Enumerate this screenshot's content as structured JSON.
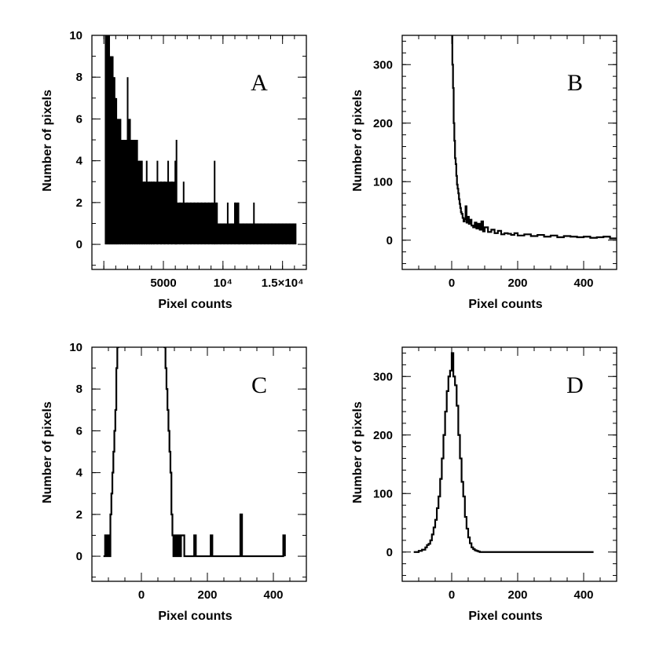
{
  "figure": {
    "description_free": true
  },
  "chart_data": [
    {
      "type": "line",
      "panel": "A",
      "title": "A",
      "xlabel": "Pixel counts",
      "ylabel": "Number of pixels",
      "xlim": [
        -1000,
        17000
      ],
      "ylim": [
        -1.2,
        10
      ],
      "xticks": [
        {
          "value": 0,
          "label": ""
        },
        {
          "value": 5000,
          "label": "5000"
        },
        {
          "value": 10000,
          "label": "10⁴"
        },
        {
          "value": 15000,
          "label": "1.5×10⁴"
        }
      ],
      "yticks": [
        0,
        2,
        4,
        6,
        8,
        10
      ],
      "xminor": 1000,
      "yminor": 1,
      "style": "spikes",
      "series": [
        {
          "name": "histogram",
          "x": [
            150,
            300,
            450,
            600,
            750,
            900,
            1050,
            1200,
            1400,
            1600,
            1800,
            2000,
            2200,
            2400,
            2600,
            2800,
            3000,
            3200,
            3400,
            3600,
            3800,
            4000,
            4200,
            4500,
            4800,
            5100,
            5400,
            5700,
            6000,
            6100,
            6400,
            6700,
            7000,
            7300,
            7600,
            7900,
            8200,
            8500,
            8800,
            9100,
            9300,
            9500,
            9800,
            10100,
            10400,
            10700,
            11000,
            11300,
            11400,
            11700,
            12000,
            12300,
            12600,
            12900,
            13200,
            13500,
            13800,
            14100,
            14400,
            14700,
            15000,
            15300,
            15600,
            15900,
            16100
          ],
          "values": [
            10,
            10,
            10,
            9,
            9,
            8,
            7,
            6,
            6,
            5,
            5,
            8,
            6,
            5,
            5,
            5,
            4,
            4,
            3,
            4,
            3,
            3,
            3,
            4,
            3,
            3,
            4,
            3,
            4,
            5,
            2,
            3,
            2,
            2,
            2,
            2,
            2,
            2,
            2,
            2,
            4,
            2,
            1,
            1,
            2,
            1,
            2,
            2,
            1,
            1,
            1,
            1,
            2,
            1,
            1,
            1,
            1,
            1,
            1,
            1,
            1,
            1,
            1,
            1,
            1
          ]
        }
      ]
    },
    {
      "type": "line",
      "panel": "B",
      "title": "B",
      "xlabel": "Pixel counts",
      "ylabel": "Number of pixels",
      "xlim": [
        -150,
        500
      ],
      "ylim": [
        -50,
        350
      ],
      "xticks": [
        {
          "value": 0,
          "label": "0"
        },
        {
          "value": 200,
          "label": "200"
        },
        {
          "value": 400,
          "label": "400"
        }
      ],
      "yticks": [
        0,
        100,
        200,
        300
      ],
      "xminor": 50,
      "yminor": 20,
      "style": "step",
      "series": [
        {
          "name": "histogram",
          "x": [
            0,
            2,
            4,
            6,
            8,
            10,
            12,
            14,
            16,
            18,
            20,
            22,
            24,
            26,
            28,
            30,
            33,
            36,
            39,
            42,
            45,
            48,
            52,
            56,
            60,
            65,
            70,
            75,
            80,
            85,
            90,
            95,
            100,
            110,
            120,
            130,
            140,
            150,
            160,
            170,
            180,
            190,
            200,
            220,
            240,
            260,
            280,
            300,
            320,
            340,
            360,
            380,
            400,
            420,
            440,
            460,
            480,
            500
          ],
          "values": [
            350,
            300,
            260,
            200,
            170,
            140,
            130,
            110,
            95,
            88,
            80,
            70,
            62,
            55,
            48,
            45,
            38,
            32,
            36,
            58,
            30,
            40,
            28,
            35,
            25,
            22,
            30,
            20,
            28,
            18,
            32,
            15,
            22,
            14,
            18,
            12,
            16,
            10,
            12,
            11,
            9,
            12,
            8,
            10,
            7,
            9,
            6,
            8,
            5,
            7,
            6,
            5,
            6,
            4,
            5,
            6,
            3,
            4
          ]
        }
      ]
    },
    {
      "type": "line",
      "panel": "C",
      "title": "C",
      "xlabel": "Pixel counts",
      "ylabel": "Number of pixels",
      "xlim": [
        -150,
        500
      ],
      "ylim": [
        -1.2,
        10
      ],
      "xticks": [
        {
          "value": 0,
          "label": "0"
        },
        {
          "value": 200,
          "label": "200"
        },
        {
          "value": 400,
          "label": "400"
        }
      ],
      "yticks": [
        0,
        2,
        4,
        6,
        8,
        10
      ],
      "xminor": 50,
      "yminor": 1,
      "style": "step",
      "series": [
        {
          "name": "histogram",
          "x": [
            -115,
            -110,
            -105,
            -100,
            -97,
            -94,
            -91,
            -88,
            -85,
            -82,
            -79,
            -76,
            -73,
            -70,
            -67,
            -64,
            -61,
            67,
            70,
            73,
            76,
            79,
            82,
            85,
            88,
            91,
            94,
            97,
            100,
            105,
            110,
            115,
            120,
            130,
            140,
            150,
            155,
            160,
            165,
            170,
            200,
            205,
            210,
            215,
            220,
            290,
            295,
            300,
            305,
            310,
            420,
            425,
            430,
            435
          ],
          "values": [
            0,
            1,
            0,
            1,
            0,
            2,
            3,
            4,
            5,
            6,
            7,
            9,
            10,
            11,
            11,
            11,
            11,
            11,
            10,
            9,
            8,
            7,
            6,
            5,
            4,
            2,
            1,
            0,
            1,
            0,
            1,
            0,
            1,
            0,
            0,
            0,
            0,
            1,
            0,
            0,
            0,
            0,
            1,
            0,
            0,
            0,
            0,
            2,
            0,
            0,
            0,
            0,
            1,
            0
          ]
        }
      ]
    },
    {
      "type": "line",
      "panel": "D",
      "title": "D",
      "xlabel": "Pixel counts",
      "ylabel": "Number of pixels",
      "xlim": [
        -150,
        500
      ],
      "ylim": [
        -50,
        350
      ],
      "xticks": [
        {
          "value": 0,
          "label": "0"
        },
        {
          "value": 200,
          "label": "200"
        },
        {
          "value": 400,
          "label": "400"
        }
      ],
      "yticks": [
        0,
        100,
        200,
        300
      ],
      "xminor": 50,
      "yminor": 20,
      "style": "step",
      "series": [
        {
          "name": "histogram",
          "x": [
            -115,
            -100,
            -90,
            -80,
            -75,
            -70,
            -65,
            -60,
            -55,
            -50,
            -45,
            -40,
            -35,
            -30,
            -25,
            -20,
            -15,
            -10,
            -5,
            0,
            5,
            10,
            15,
            20,
            25,
            30,
            35,
            40,
            45,
            50,
            55,
            60,
            65,
            70,
            75,
            80,
            85,
            90,
            100,
            150,
            200,
            300,
            400,
            430
          ],
          "values": [
            0,
            2,
            4,
            8,
            12,
            14,
            20,
            30,
            42,
            55,
            75,
            95,
            125,
            160,
            200,
            240,
            275,
            300,
            310,
            340,
            300,
            285,
            250,
            200,
            160,
            120,
            95,
            60,
            40,
            25,
            15,
            8,
            5,
            3,
            2,
            1,
            0,
            0,
            0,
            0,
            0,
            0,
            0,
            0
          ]
        }
      ]
    }
  ]
}
